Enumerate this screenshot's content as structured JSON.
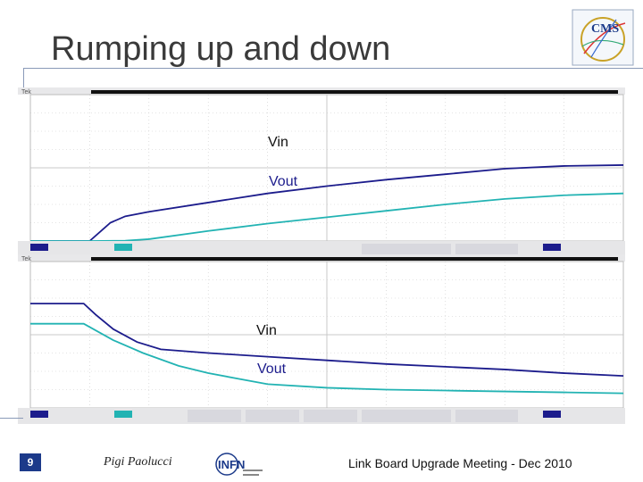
{
  "slide": {
    "title": "Rumping up and down",
    "number": "9",
    "author": "Pigi Paolucci",
    "meeting": "Link Board Upgrade Meeting - Dec 2010"
  },
  "logos": {
    "top_right": "CMS",
    "footer": "INFN"
  },
  "colors": {
    "vin": "#1c1c8c",
    "vout": "#22b3b3",
    "grid": "#c9c9c9",
    "frame": "#222222",
    "accent": "#1c3a8a"
  },
  "chart_data": [
    {
      "type": "line",
      "title": "",
      "xlabel": "",
      "ylabel": "",
      "xlim": [
        0,
        10
      ],
      "ylim": [
        0,
        8
      ],
      "grid": true,
      "series": [
        {
          "name": "Vin",
          "x": [
            0,
            1.0,
            1.35,
            1.6,
            2.0,
            3.0,
            4.0,
            5.0,
            6.0,
            7.0,
            8.0,
            9.0,
            10.0
          ],
          "values": [
            0,
            0,
            1.0,
            1.35,
            1.6,
            2.1,
            2.6,
            3.0,
            3.35,
            3.65,
            3.95,
            4.1,
            4.15
          ]
        },
        {
          "name": "Vout",
          "x": [
            0,
            1.0,
            1.6,
            2.0,
            3.0,
            4.0,
            5.0,
            6.0,
            7.0,
            8.0,
            9.0,
            10.0
          ],
          "values": [
            0,
            0,
            0.02,
            0.1,
            0.55,
            0.95,
            1.3,
            1.65,
            2.0,
            2.3,
            2.5,
            2.6
          ]
        }
      ],
      "annotations": [
        "Vin",
        "Vout"
      ]
    },
    {
      "type": "line",
      "title": "",
      "xlabel": "",
      "ylabel": "",
      "xlim": [
        0,
        10
      ],
      "ylim": [
        0,
        8
      ],
      "grid": true,
      "series": [
        {
          "name": "Vin",
          "x": [
            0,
            0.9,
            1.1,
            1.4,
            1.8,
            2.2,
            3.0,
            4.0,
            5.0,
            6.0,
            7.0,
            8.0,
            9.0,
            10.0
          ],
          "values": [
            5.7,
            5.7,
            5.1,
            4.3,
            3.6,
            3.2,
            3.0,
            2.8,
            2.6,
            2.4,
            2.25,
            2.1,
            1.9,
            1.75
          ]
        },
        {
          "name": "Vout",
          "x": [
            0,
            0.9,
            1.4,
            1.9,
            2.5,
            3.0,
            3.5,
            4.0,
            5.0,
            6.0,
            7.0,
            8.0,
            9.0,
            10.0
          ],
          "values": [
            4.6,
            4.6,
            3.7,
            3.0,
            2.3,
            1.9,
            1.6,
            1.3,
            1.1,
            1.0,
            0.95,
            0.9,
            0.85,
            0.8
          ]
        }
      ],
      "annotations": [
        "Vin",
        "Vout"
      ]
    }
  ]
}
